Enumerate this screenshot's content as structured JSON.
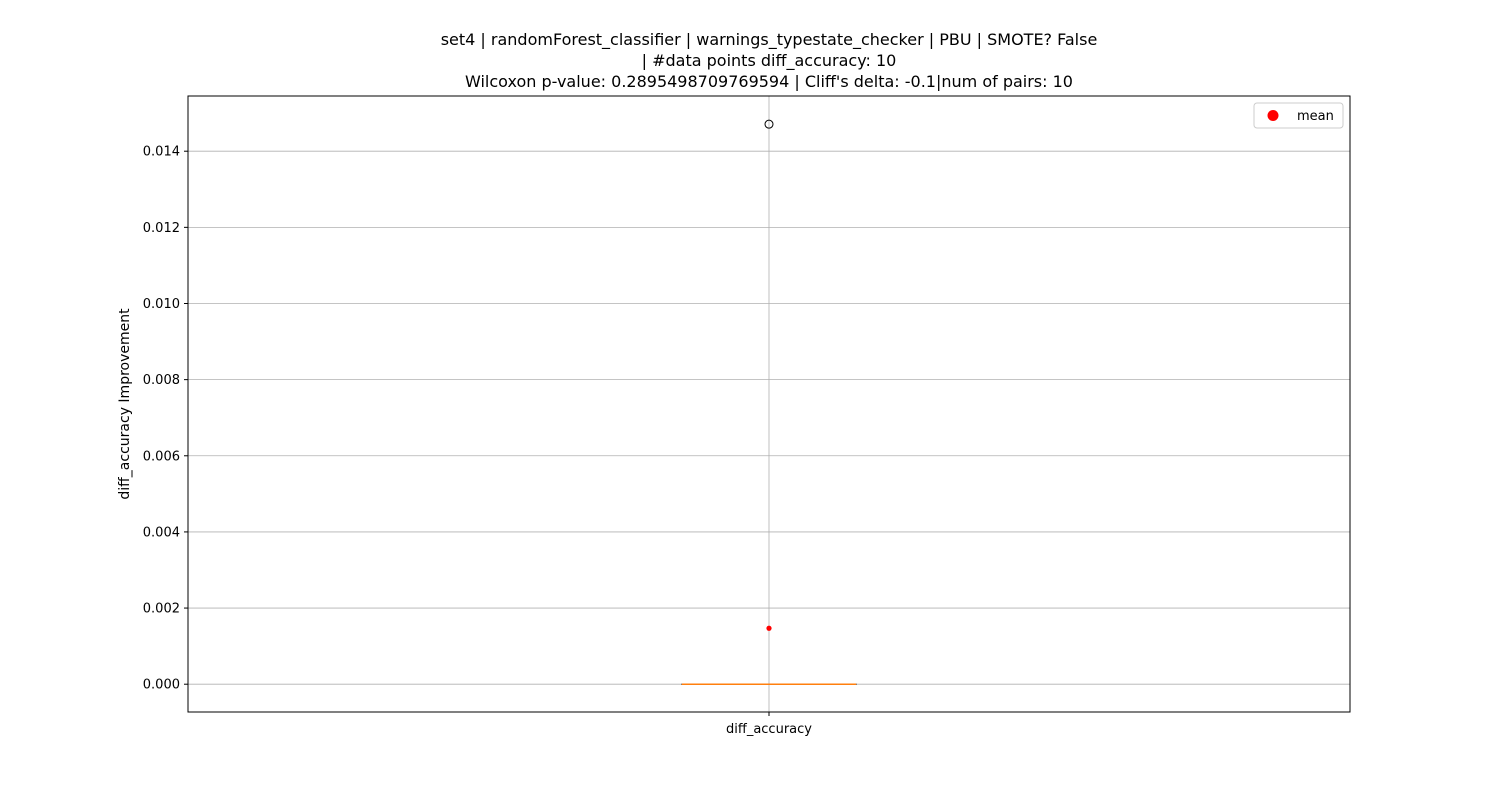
{
  "chart_data": {
    "type": "box",
    "title_lines": [
      "set4 | randomForest_classifier | warnings_typestate_checker | PBU | SMOTE? False",
      "| #data points diff_accuracy: 10",
      "Wilcoxon p-value: 0.2895498709769594 | Cliff's delta: -0.1|num of pairs: 10"
    ],
    "categories": [
      "diff_accuracy"
    ],
    "ylabel": "diff_accuracy Improvement",
    "ylim": [
      -0.00073,
      0.01545
    ],
    "yticks": [
      0.0,
      0.002,
      0.004,
      0.006,
      0.008,
      0.01,
      0.012,
      0.014
    ],
    "ytick_labels": [
      "0.000",
      "0.002",
      "0.004",
      "0.006",
      "0.008",
      "0.010",
      "0.012",
      "0.014"
    ],
    "grid": true,
    "boxes": [
      {
        "category": "diff_accuracy",
        "whislo": 0.0,
        "q1": 0.0,
        "median": 0.0,
        "q3": 0.0,
        "whishi": 0.0,
        "mean": 0.00147,
        "fliers": [
          0.01471
        ]
      }
    ],
    "legend": {
      "placement": "top-right",
      "entries": [
        {
          "label": "mean",
          "color": "#ff0000"
        }
      ]
    },
    "colors": {
      "median": "#ff7f0e",
      "mean": "#ff0000",
      "grid": "#b0b0b0",
      "box": "#000000"
    }
  }
}
